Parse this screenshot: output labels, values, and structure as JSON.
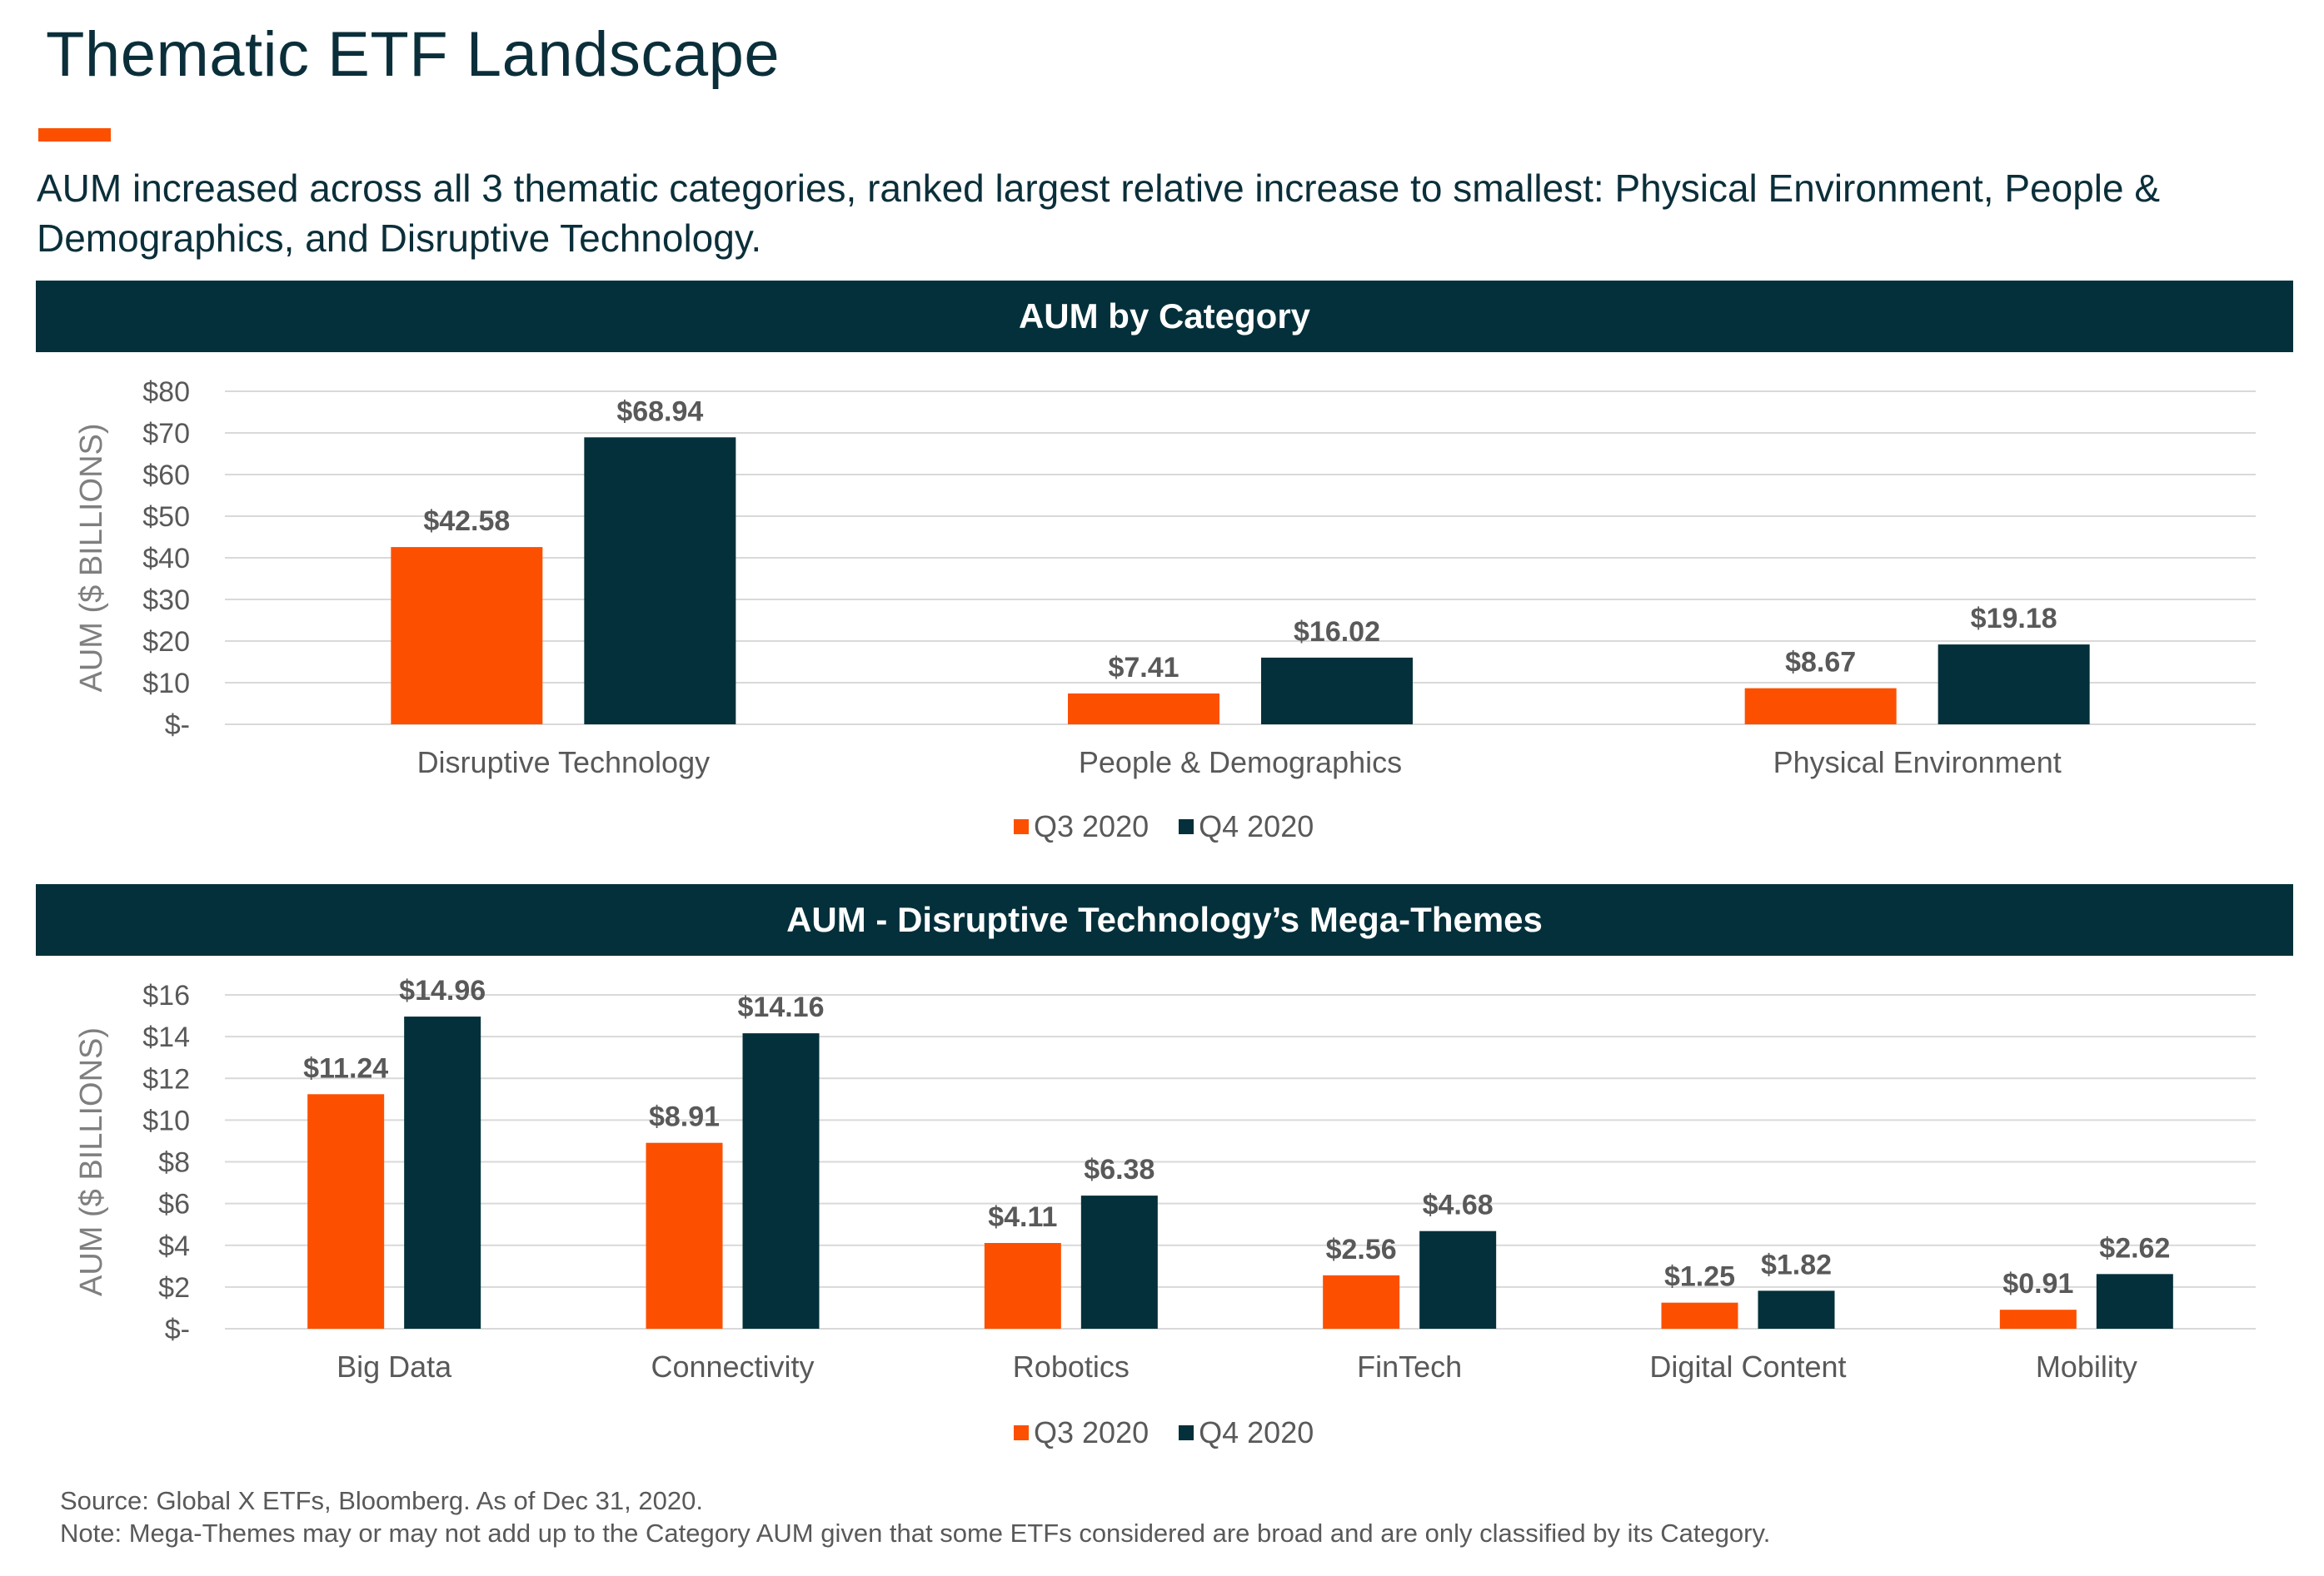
{
  "page": {
    "title": "Thematic ETF Landscape",
    "subtitle": "AUM increased across all 3 thematic categories, ranked largest relative increase to smallest: Physical Environment, People & Demographics, and Disruptive Technology.",
    "source": "Source: Global X ETFs, Bloomberg. As of Dec 31, 2020.",
    "note": "Note: Mega-Themes may or may not add up to the Category AUM given that some ETFs considered are broad and are only classified by its Category."
  },
  "colors": {
    "q3": "#fc5000",
    "q4": "#03303a",
    "band": "#03303a",
    "accent": "#fc5000"
  },
  "chart_data": [
    {
      "type": "bar",
      "title": "AUM by Category",
      "ylabel": "AUM ($ BILLIONS)",
      "ylim": [
        0,
        80
      ],
      "yticks": [
        "$-",
        "$10",
        "$20",
        "$30",
        "$40",
        "$50",
        "$60",
        "$70",
        "$80"
      ],
      "categories": [
        "Disruptive Technology",
        "People & Demographics",
        "Physical Environment"
      ],
      "series": [
        {
          "name": "Q3 2020",
          "values": [
            42.58,
            7.41,
            8.67
          ],
          "labels": [
            "$42.58",
            "$7.41",
            "$8.67"
          ]
        },
        {
          "name": "Q4 2020",
          "values": [
            68.94,
            16.02,
            19.18
          ],
          "labels": [
            "$68.94",
            "$16.02",
            "$19.18"
          ]
        }
      ],
      "legend": "bottom-center",
      "grid": true
    },
    {
      "type": "bar",
      "title": "AUM - Disruptive Technology’s Mega-Themes",
      "ylabel": "AUM ($ BILLIONS)",
      "ylim": [
        0,
        16
      ],
      "yticks": [
        "$-",
        "$2",
        "$4",
        "$6",
        "$8",
        "$10",
        "$12",
        "$14",
        "$16"
      ],
      "categories": [
        "Big Data",
        "Connectivity",
        "Robotics",
        "FinTech",
        "Digital Content",
        "Mobility"
      ],
      "series": [
        {
          "name": "Q3 2020",
          "values": [
            11.24,
            8.91,
            4.11,
            2.56,
            1.25,
            0.91
          ],
          "labels": [
            "$11.24",
            "$8.91",
            "$4.11",
            "$2.56",
            "$1.25",
            "$0.91"
          ]
        },
        {
          "name": "Q4 2020",
          "values": [
            14.96,
            14.16,
            6.38,
            4.68,
            1.82,
            2.62
          ],
          "labels": [
            "$14.96",
            "$14.16",
            "$6.38",
            "$4.68",
            "$1.82",
            "$2.62"
          ]
        }
      ],
      "legend": "bottom-center",
      "grid": true
    }
  ]
}
